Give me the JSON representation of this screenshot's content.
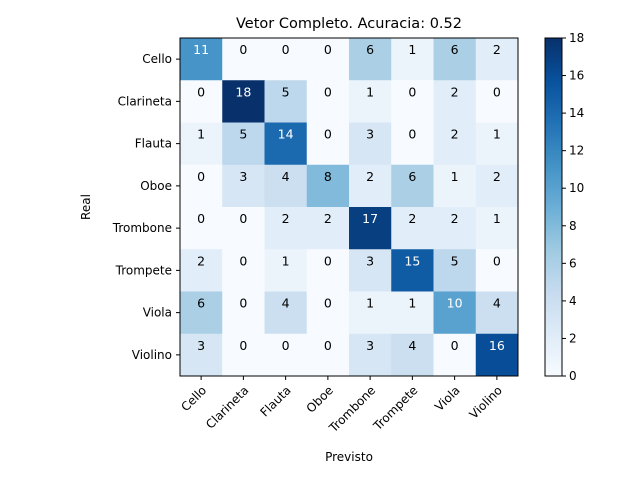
{
  "chart_data": {
    "type": "heatmap",
    "title": "Vetor Completo. Acuracia: 0.52",
    "xlabel": "Previsto",
    "ylabel": "Real",
    "x_categories": [
      "Cello",
      "Clarineta",
      "Flauta",
      "Oboe",
      "Trombone",
      "Trompete",
      "Viola",
      "Violino"
    ],
    "y_categories": [
      "Cello",
      "Clarineta",
      "Flauta",
      "Oboe",
      "Trombone",
      "Trompete",
      "Viola",
      "Violino"
    ],
    "values": [
      [
        11,
        0,
        0,
        0,
        6,
        1,
        6,
        2
      ],
      [
        0,
        18,
        5,
        0,
        1,
        0,
        2,
        0
      ],
      [
        1,
        5,
        14,
        0,
        3,
        0,
        2,
        1
      ],
      [
        0,
        3,
        4,
        8,
        2,
        6,
        1,
        2
      ],
      [
        0,
        0,
        2,
        2,
        17,
        2,
        2,
        1
      ],
      [
        2,
        0,
        1,
        0,
        3,
        15,
        5,
        0
      ],
      [
        6,
        0,
        4,
        0,
        1,
        1,
        10,
        4
      ],
      [
        3,
        0,
        0,
        0,
        3,
        4,
        0,
        16
      ]
    ],
    "colormap": "Blues",
    "colorbar": {
      "min": 0,
      "max": 18,
      "ticks": [
        "0",
        "2",
        "4",
        "6",
        "8",
        "10",
        "12",
        "14",
        "16",
        "18"
      ]
    },
    "text_light_color": "#ffffff",
    "text_dark_color": "#000000"
  }
}
